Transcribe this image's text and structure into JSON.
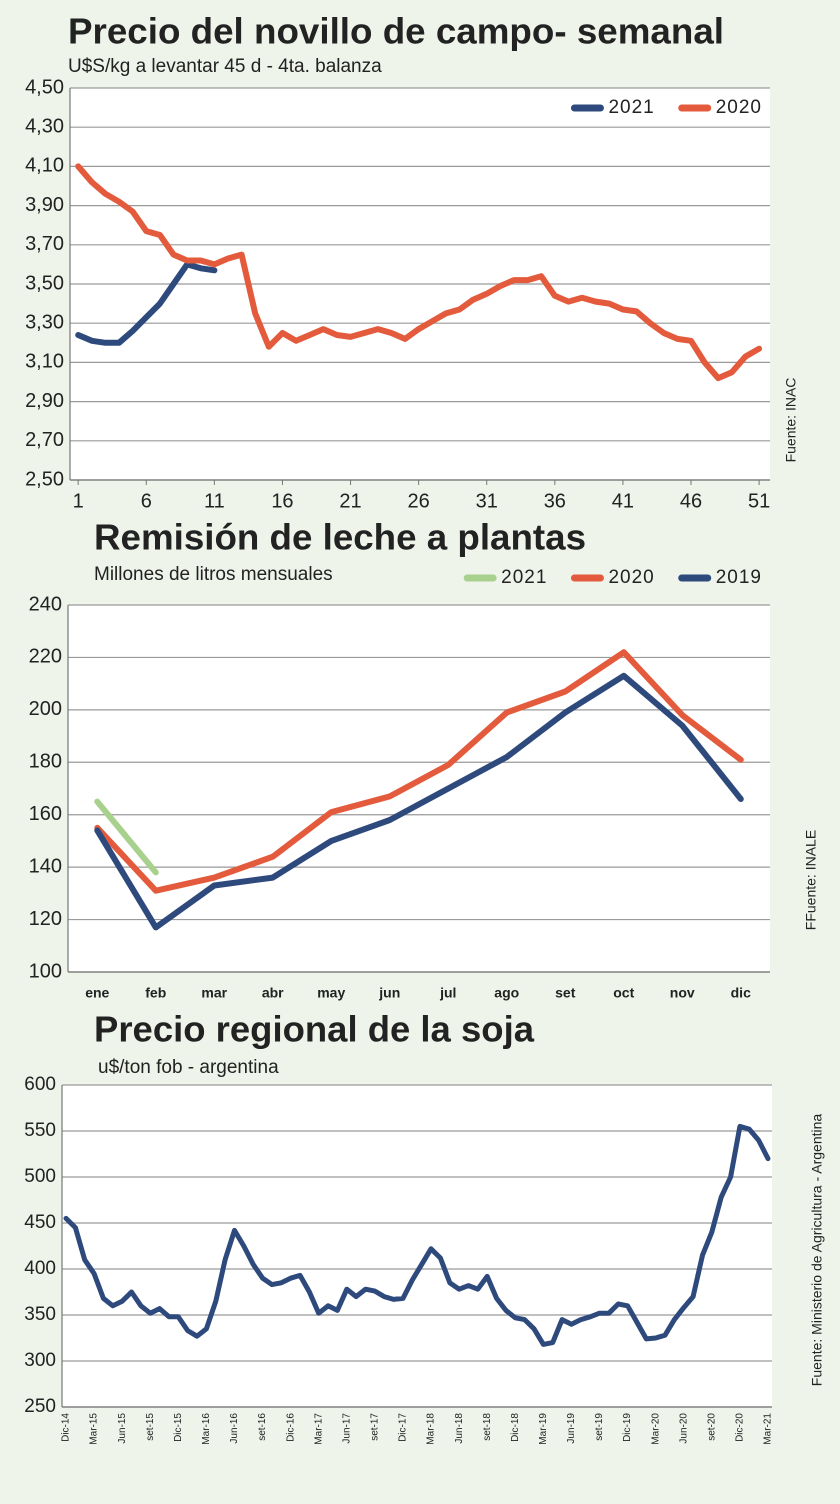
{
  "chart_data": [
    {
      "type": "line",
      "title": "Precio del novillo de campo- semanal",
      "subtitle": "U$S/kg a levantar 45 d  -  4ta. balanza",
      "source": "Fuente: INAC",
      "x": [
        1,
        2,
        3,
        4,
        5,
        6,
        7,
        8,
        9,
        10,
        11,
        12,
        13,
        14,
        15,
        16,
        17,
        18,
        19,
        20,
        21,
        22,
        23,
        24,
        25,
        26,
        27,
        28,
        29,
        30,
        31,
        32,
        33,
        34,
        35,
        36,
        37,
        38,
        39,
        40,
        41,
        42,
        43,
        44,
        45,
        46,
        47,
        48,
        49,
        50,
        51
      ],
      "series": [
        {
          "name": "2021",
          "color": "#2e4a7d",
          "values": [
            3.24,
            3.21,
            3.2,
            3.2,
            3.26,
            3.33,
            3.4,
            3.5,
            3.6,
            3.58,
            3.57,
            null,
            null,
            null,
            null,
            null,
            null,
            null,
            null,
            null,
            null,
            null,
            null,
            null,
            null,
            null,
            null,
            null,
            null,
            null,
            null,
            null,
            null,
            null,
            null,
            null,
            null,
            null,
            null,
            null,
            null,
            null,
            null,
            null,
            null,
            null,
            null,
            null,
            null,
            null,
            null
          ]
        },
        {
          "name": "2020",
          "color": "#e35b3c",
          "values": [
            4.1,
            4.02,
            3.96,
            3.92,
            3.87,
            3.77,
            3.75,
            3.65,
            3.62,
            3.62,
            3.6,
            3.63,
            3.65,
            3.35,
            3.18,
            3.25,
            3.21,
            3.24,
            3.27,
            3.24,
            3.23,
            3.25,
            3.27,
            3.25,
            3.22,
            3.27,
            3.31,
            3.35,
            3.37,
            3.42,
            3.45,
            3.49,
            3.52,
            3.52,
            3.54,
            3.44,
            3.41,
            3.43,
            3.41,
            3.4,
            3.37,
            3.36,
            3.3,
            3.25,
            3.22,
            3.21,
            3.1,
            3.02,
            3.05,
            3.13,
            3.17
          ]
        }
      ],
      "xlim": [
        0.4,
        51.8
      ],
      "xticks": [
        1,
        6,
        11,
        16,
        21,
        26,
        31,
        36,
        41,
        46,
        51
      ],
      "ylim": [
        2.5,
        4.5
      ],
      "yticks": [
        {
          "value": 2.5,
          "label": "2,50"
        },
        {
          "value": 2.7,
          "label": "2,70"
        },
        {
          "value": 2.9,
          "label": "2,90"
        },
        {
          "value": 3.1,
          "label": "3,10"
        },
        {
          "value": 3.3,
          "label": "3,30"
        },
        {
          "value": 3.5,
          "label": "3,50"
        },
        {
          "value": 3.7,
          "label": "3,70"
        },
        {
          "value": 3.9,
          "label": "3,90"
        },
        {
          "value": 4.1,
          "label": "4,10"
        },
        {
          "value": 4.3,
          "label": "4,30"
        },
        {
          "value": 4.5,
          "label": "4,50"
        }
      ],
      "grid": true,
      "legend": "top-right"
    },
    {
      "type": "line",
      "title": "Remisión de leche a plantas",
      "subtitle": "Millones de litros mensuales",
      "source": "FFuente: INALE",
      "categories": [
        "ene",
        "feb",
        "mar",
        "abr",
        "may",
        "jun",
        "jul",
        "ago",
        "set",
        "oct",
        "nov",
        "dic"
      ],
      "series": [
        {
          "name": "2021",
          "color": "#a9d18e",
          "values": [
            165,
            138,
            null,
            null,
            null,
            null,
            null,
            null,
            null,
            null,
            null,
            null
          ]
        },
        {
          "name": "2020",
          "color": "#e35b3c",
          "values": [
            155,
            131,
            136,
            144,
            161,
            167,
            179,
            199,
            207,
            222,
            198,
            181
          ]
        },
        {
          "name": "2019",
          "color": "#2e4a7d",
          "values": [
            154,
            117,
            133,
            136,
            150,
            158,
            170,
            182,
            199,
            213,
            194,
            166
          ]
        }
      ],
      "ylim": [
        100,
        240
      ],
      "yticks": [
        100,
        120,
        140,
        160,
        180,
        200,
        220,
        240
      ],
      "grid": true,
      "legend": "top-right"
    },
    {
      "type": "line",
      "title": "Precio regional de la soja",
      "subtitle": "u$/ton fob -  argentina",
      "source": "Fuente: Ministerio de Agricultura - Argentina",
      "categories": [
        "Dic-14",
        null,
        null,
        "Mar-15",
        null,
        null,
        "Jun-15",
        null,
        null,
        "set-15",
        null,
        null,
        "Dic-15",
        null,
        null,
        "Mar-16",
        null,
        null,
        "Jun-16",
        null,
        null,
        "set-16",
        null,
        null,
        "Dic-16",
        null,
        null,
        "Mar-17",
        null,
        null,
        "Jun-17",
        null,
        null,
        "set-17",
        null,
        null,
        "Dic-17",
        null,
        null,
        "Mar-18",
        null,
        null,
        "Jun-18",
        null,
        null,
        "set-18",
        null,
        null,
        "Dic-18",
        null,
        null,
        "Mar-19",
        null,
        null,
        "Jun-19",
        null,
        null,
        "set-19",
        null,
        null,
        "Dic-19",
        null,
        null,
        "Mar-20",
        null,
        null,
        "Jun-20",
        null,
        null,
        "set-20",
        null,
        null,
        "Dic-20",
        null,
        null,
        "Mar-21"
      ],
      "series": [
        {
          "name": "soja",
          "color": "#2e4a7d",
          "values": [
            455,
            445,
            410,
            395,
            368,
            360,
            365,
            375,
            360,
            352,
            357,
            348,
            348,
            333,
            327,
            335,
            365,
            410,
            442,
            425,
            405,
            390,
            383,
            385,
            390,
            393,
            375,
            352,
            360,
            355,
            378,
            370,
            378,
            376,
            370,
            367,
            368,
            388,
            405,
            422,
            412,
            385,
            378,
            382,
            378,
            392,
            368,
            355,
            347,
            345,
            335,
            318,
            320,
            345,
            340,
            345,
            348,
            352,
            352,
            362,
            360,
            342,
            324,
            325,
            328,
            345,
            358,
            370,
            415,
            440,
            478,
            500,
            555,
            552,
            540,
            520
          ]
        }
      ],
      "ylim": [
        250,
        600
      ],
      "yticks": [
        250,
        300,
        350,
        400,
        450,
        500,
        550,
        600
      ],
      "grid": true
    }
  ]
}
